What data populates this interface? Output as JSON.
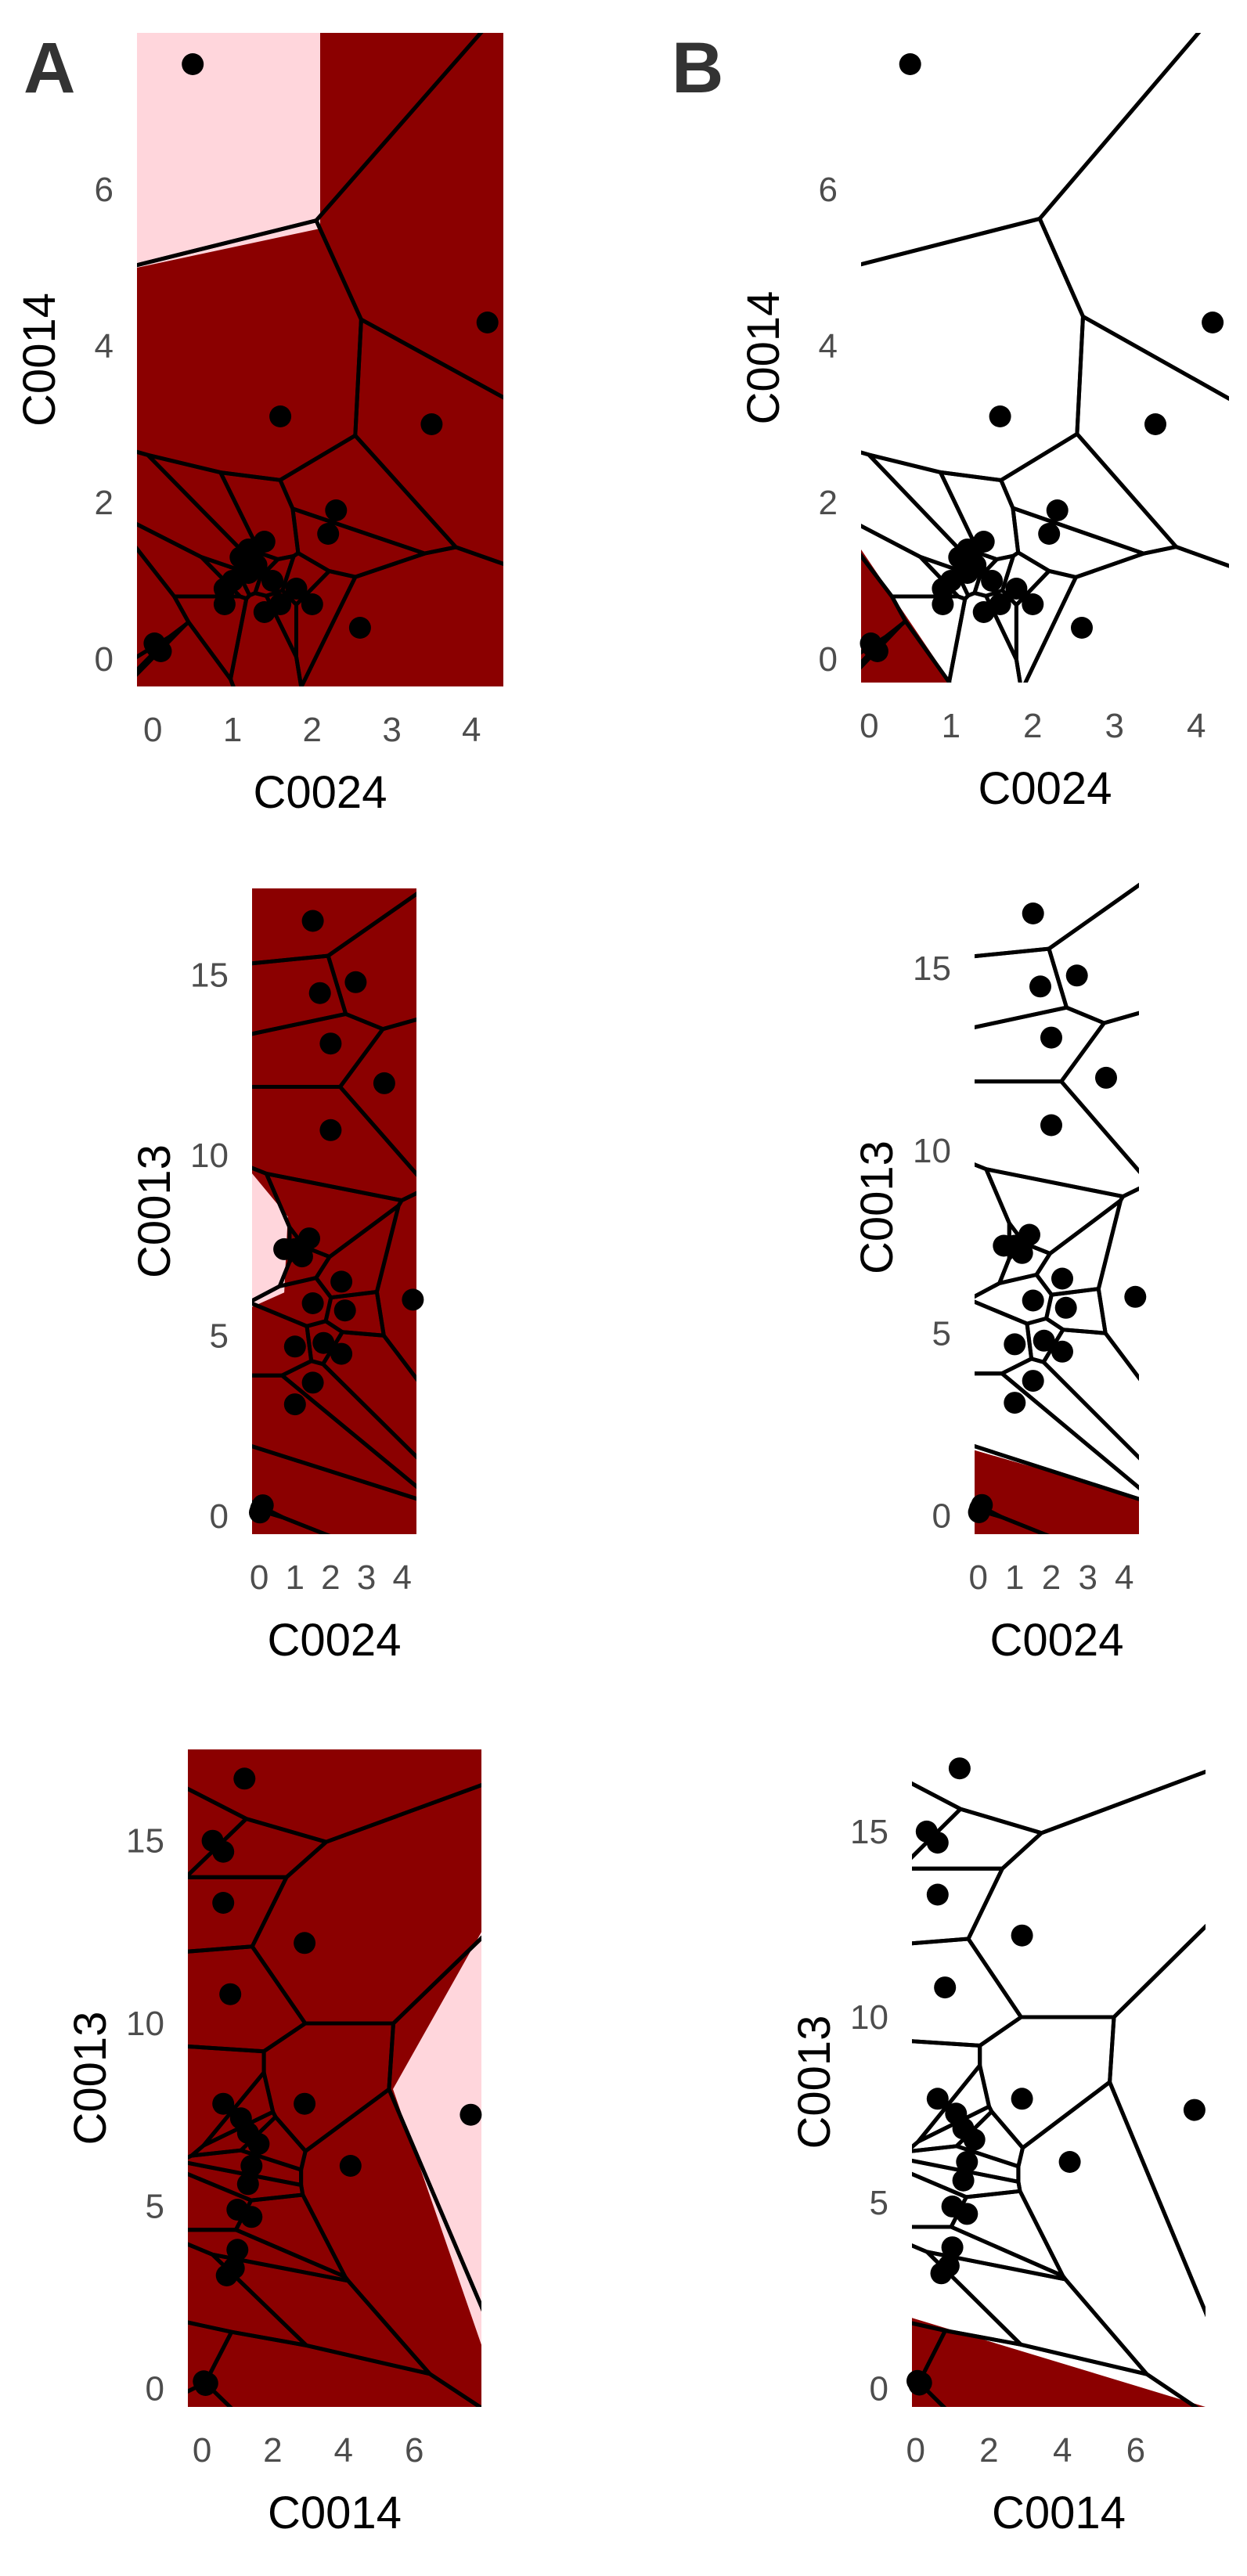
{
  "panel_labels": [
    "A",
    "B"
  ],
  "colors": {
    "region_dark": "#8b0000",
    "region_light": "#ffd6dc",
    "edge": "#000000",
    "point": "#000000"
  },
  "chart_data": [
    {
      "type": "scatter",
      "id": "A1",
      "panel": "A",
      "xlabel": "C0024",
      "ylabel": "C0014",
      "xlim": [
        -0.2,
        4.4
      ],
      "ylim": [
        -0.35,
        8.0
      ],
      "xticks": [
        0,
        1,
        2,
        3,
        4
      ],
      "yticks": [
        0,
        2,
        4,
        6
      ],
      "grid": false,
      "fill": "dark",
      "light_region": [
        [
          -0.2,
          8.0
        ],
        [
          2.1,
          8.0
        ],
        [
          2.1,
          5.5
        ],
        [
          -0.2,
          5.0
        ]
      ],
      "points": [
        [
          0.5,
          7.6
        ],
        [
          4.2,
          4.3
        ],
        [
          1.6,
          3.1
        ],
        [
          3.5,
          3.0
        ],
        [
          2.3,
          1.9
        ],
        [
          2.2,
          1.6
        ],
        [
          1.2,
          1.4
        ],
        [
          1.4,
          1.5
        ],
        [
          1.3,
          1.2
        ],
        [
          1.0,
          1.0
        ],
        [
          1.1,
          1.3
        ],
        [
          0.9,
          0.9
        ],
        [
          1.5,
          1.0
        ],
        [
          1.8,
          0.9
        ],
        [
          1.6,
          0.7
        ],
        [
          2.0,
          0.7
        ],
        [
          1.4,
          0.6
        ],
        [
          1.2,
          1.1
        ],
        [
          0.9,
          0.7
        ],
        [
          2.6,
          0.4
        ],
        [
          0.05,
          0.15
        ],
        [
          0.1,
          0.1
        ],
        [
          0.02,
          0.2
        ],
        [
          0.08,
          0.12
        ]
      ]
    },
    {
      "type": "scatter",
      "id": "B1",
      "panel": "B",
      "xlabel": "C0024",
      "ylabel": "C0014",
      "xlim": [
        -0.1,
        4.4
      ],
      "ylim": [
        -0.3,
        8.0
      ],
      "xticks": [
        0,
        1,
        2,
        3,
        4
      ],
      "yticks": [
        0,
        2,
        4,
        6
      ],
      "grid": false,
      "fill": "none",
      "dark_region": [
        [
          -0.1,
          1.4
        ],
        [
          -0.1,
          -0.3
        ],
        [
          1.0,
          -0.3
        ]
      ],
      "points": [
        [
          0.5,
          7.6
        ],
        [
          4.2,
          4.3
        ],
        [
          1.6,
          3.1
        ],
        [
          3.5,
          3.0
        ],
        [
          2.3,
          1.9
        ],
        [
          2.2,
          1.6
        ],
        [
          1.2,
          1.4
        ],
        [
          1.4,
          1.5
        ],
        [
          1.3,
          1.2
        ],
        [
          1.0,
          1.0
        ],
        [
          1.1,
          1.3
        ],
        [
          0.9,
          0.9
        ],
        [
          1.5,
          1.0
        ],
        [
          1.8,
          0.9
        ],
        [
          1.6,
          0.7
        ],
        [
          2.0,
          0.7
        ],
        [
          1.4,
          0.6
        ],
        [
          1.2,
          1.1
        ],
        [
          0.9,
          0.7
        ],
        [
          2.6,
          0.4
        ],
        [
          0.05,
          0.15
        ],
        [
          0.1,
          0.1
        ],
        [
          0.02,
          0.2
        ],
        [
          0.08,
          0.12
        ]
      ]
    },
    {
      "type": "scatter",
      "id": "A2",
      "panel": "A",
      "xlabel": "C0024",
      "ylabel": "C0013",
      "xlim": [
        -0.2,
        4.4
      ],
      "ylim": [
        -0.5,
        17.4
      ],
      "xticks": [
        0,
        1,
        2,
        3,
        4
      ],
      "yticks": [
        0,
        5,
        10,
        15
      ],
      "grid": false,
      "fill": "dark",
      "light_region": [
        [
          -0.2,
          9.5
        ],
        [
          0.8,
          8.3
        ],
        [
          0.7,
          6.2
        ],
        [
          -0.2,
          5.8
        ]
      ],
      "points": [
        [
          1.5,
          16.5
        ],
        [
          1.7,
          14.5
        ],
        [
          2.7,
          14.8
        ],
        [
          2.0,
          13.1
        ],
        [
          3.5,
          12.0
        ],
        [
          2.0,
          10.7
        ],
        [
          0.7,
          7.4
        ],
        [
          1.0,
          7.4
        ],
        [
          1.4,
          7.7
        ],
        [
          1.2,
          7.2
        ],
        [
          2.3,
          6.5
        ],
        [
          1.5,
          5.9
        ],
        [
          2.4,
          5.7
        ],
        [
          4.3,
          6.0
        ],
        [
          1.0,
          4.7
        ],
        [
          1.8,
          4.8
        ],
        [
          2.3,
          4.5
        ],
        [
          1.5,
          3.7
        ],
        [
          1.0,
          3.1
        ],
        [
          0.05,
          0.2
        ],
        [
          0.1,
          0.3
        ],
        [
          0.02,
          0.1
        ]
      ]
    },
    {
      "type": "scatter",
      "id": "B2",
      "panel": "B",
      "xlabel": "C0024",
      "ylabel": "C0013",
      "xlim": [
        -0.1,
        4.4
      ],
      "ylim": [
        -0.5,
        17.4
      ],
      "xticks": [
        0,
        1,
        2,
        3,
        4
      ],
      "yticks": [
        0,
        5,
        10,
        15
      ],
      "grid": false,
      "fill": "none",
      "dark_region": [
        [
          -0.1,
          1.8
        ],
        [
          -0.1,
          -0.5
        ],
        [
          4.4,
          -0.5
        ],
        [
          4.4,
          0.5
        ]
      ],
      "points": [
        [
          1.5,
          16.5
        ],
        [
          1.7,
          14.5
        ],
        [
          2.7,
          14.8
        ],
        [
          2.0,
          13.1
        ],
        [
          3.5,
          12.0
        ],
        [
          2.0,
          10.7
        ],
        [
          0.7,
          7.4
        ],
        [
          1.0,
          7.4
        ],
        [
          1.4,
          7.7
        ],
        [
          1.2,
          7.2
        ],
        [
          2.3,
          6.5
        ],
        [
          1.5,
          5.9
        ],
        [
          2.4,
          5.7
        ],
        [
          4.3,
          6.0
        ],
        [
          1.0,
          4.7
        ],
        [
          1.8,
          4.8
        ],
        [
          2.3,
          4.5
        ],
        [
          1.5,
          3.7
        ],
        [
          1.0,
          3.1
        ],
        [
          0.05,
          0.2
        ],
        [
          0.1,
          0.3
        ],
        [
          0.02,
          0.1
        ]
      ]
    },
    {
      "type": "scatter",
      "id": "A3",
      "panel": "A",
      "xlabel": "C0014",
      "ylabel": "C0013",
      "xlim": [
        -0.4,
        7.9
      ],
      "ylim": [
        -0.5,
        17.5
      ],
      "xticks": [
        0,
        2,
        4,
        6
      ],
      "yticks": [
        0,
        5,
        10,
        15
      ],
      "grid": false,
      "fill": "dark",
      "light_region": [
        [
          7.9,
          12.5
        ],
        [
          5.4,
          8.2
        ],
        [
          7.9,
          1.2
        ]
      ],
      "points": [
        [
          1.2,
          16.7
        ],
        [
          0.3,
          15.0
        ],
        [
          0.6,
          14.7
        ],
        [
          0.6,
          13.3
        ],
        [
          2.9,
          12.2
        ],
        [
          0.8,
          10.8
        ],
        [
          0.6,
          7.8
        ],
        [
          1.1,
          7.4
        ],
        [
          1.3,
          7.0
        ],
        [
          1.6,
          6.7
        ],
        [
          1.4,
          6.1
        ],
        [
          1.3,
          5.6
        ],
        [
          2.9,
          7.8
        ],
        [
          4.2,
          6.1
        ],
        [
          7.6,
          7.5
        ],
        [
          1.0,
          4.9
        ],
        [
          1.4,
          4.7
        ],
        [
          1.0,
          3.8
        ],
        [
          0.9,
          3.3
        ],
        [
          0.7,
          3.1
        ],
        [
          0.1,
          0.1
        ],
        [
          0.05,
          0.2
        ],
        [
          0.15,
          0.15
        ]
      ]
    },
    {
      "type": "scatter",
      "id": "B3",
      "panel": "B",
      "xlabel": "C0014",
      "ylabel": "C0013",
      "xlim": [
        -0.1,
        7.9
      ],
      "ylim": [
        -0.5,
        17.0
      ],
      "xticks": [
        0,
        2,
        4,
        6
      ],
      "yticks": [
        0,
        5,
        10,
        15
      ],
      "grid": false,
      "fill": "none",
      "dark_region": [
        [
          -0.1,
          1.9
        ],
        [
          -0.1,
          -0.5
        ],
        [
          7.9,
          -0.5
        ]
      ],
      "points": [
        [
          1.2,
          16.7
        ],
        [
          0.3,
          15.0
        ],
        [
          0.6,
          14.7
        ],
        [
          0.6,
          13.3
        ],
        [
          2.9,
          12.2
        ],
        [
          0.8,
          10.8
        ],
        [
          0.6,
          7.8
        ],
        [
          1.1,
          7.4
        ],
        [
          1.3,
          7.0
        ],
        [
          1.6,
          6.7
        ],
        [
          1.4,
          6.1
        ],
        [
          1.3,
          5.6
        ],
        [
          2.9,
          7.8
        ],
        [
          4.2,
          6.1
        ],
        [
          7.6,
          7.5
        ],
        [
          1.0,
          4.9
        ],
        [
          1.4,
          4.7
        ],
        [
          1.0,
          3.8
        ],
        [
          0.9,
          3.3
        ],
        [
          0.7,
          3.1
        ],
        [
          0.1,
          0.1
        ],
        [
          0.05,
          0.2
        ],
        [
          0.15,
          0.15
        ]
      ]
    }
  ]
}
